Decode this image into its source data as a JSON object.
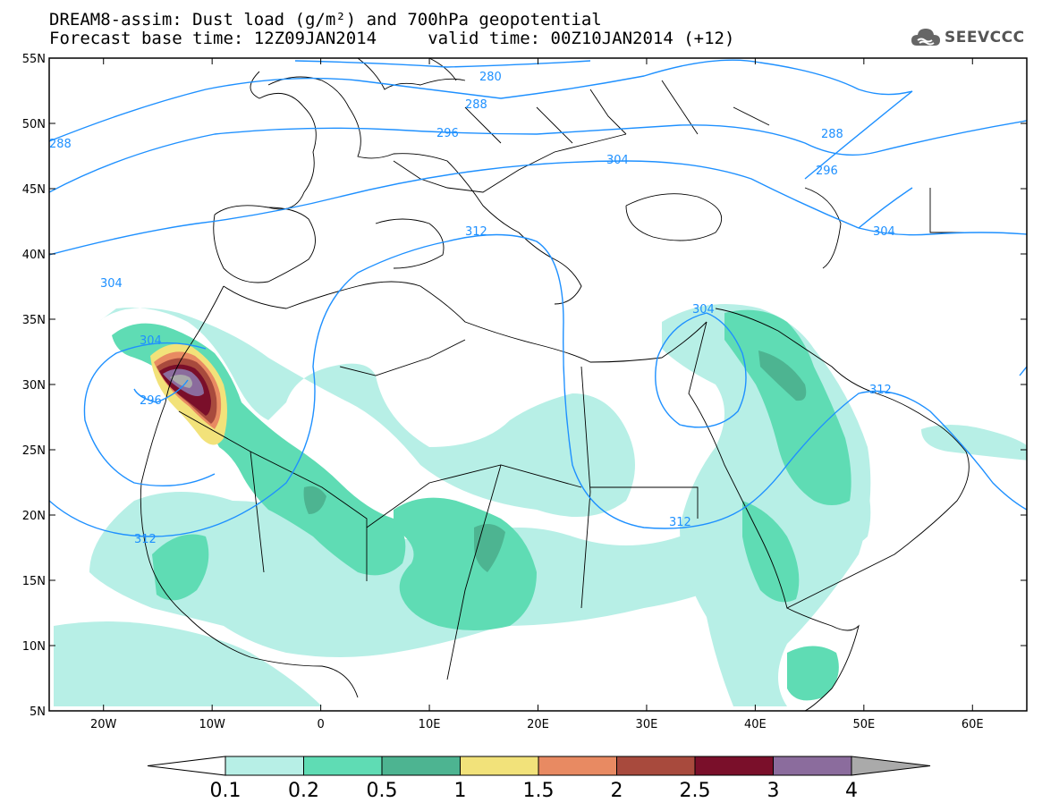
{
  "title": {
    "line1": "DREAM8-assim: Dust load (g/m²) and 700hPa geopotential",
    "line2": "Forecast base time: 12Z09JAN2014     valid time: 00Z10JAN2014 (+12)"
  },
  "logo": {
    "text": "SEEVCCC",
    "icon": "cloud-icon"
  },
  "axes": {
    "lat_ticks": [
      "55N",
      "50N",
      "45N",
      "40N",
      "35N",
      "30N",
      "25N",
      "20N",
      "15N",
      "10N",
      "5N"
    ],
    "lon_ticks": [
      "20W",
      "10W",
      "0",
      "10E",
      "20E",
      "30E",
      "40E",
      "50E",
      "60E"
    ],
    "lat_range": [
      5,
      55
    ],
    "lon_range": [
      -25,
      65
    ]
  },
  "colorbar": {
    "labels": [
      "0.1",
      "0.2",
      "0.5",
      "1",
      "1.5",
      "2",
      "2.5",
      "3",
      "4"
    ],
    "colors": [
      "#b7efe6",
      "#5fdcb4",
      "#4db491",
      "#f2e27a",
      "#e88a62",
      "#a84a3d",
      "#7a0f2a",
      "#8b6c9d",
      "#aaaaaa"
    ]
  },
  "contour_color": "#1e90ff",
  "contour_labels": [
    {
      "text": "280"
    },
    {
      "text": "288"
    },
    {
      "text": "288"
    },
    {
      "text": "288"
    },
    {
      "text": "296"
    },
    {
      "text": "296"
    },
    {
      "text": "296"
    },
    {
      "text": "304"
    },
    {
      "text": "304"
    },
    {
      "text": "304"
    },
    {
      "text": "304"
    },
    {
      "text": "304"
    },
    {
      "text": "312"
    },
    {
      "text": "312"
    },
    {
      "text": "312"
    },
    {
      "text": "312"
    }
  ]
}
